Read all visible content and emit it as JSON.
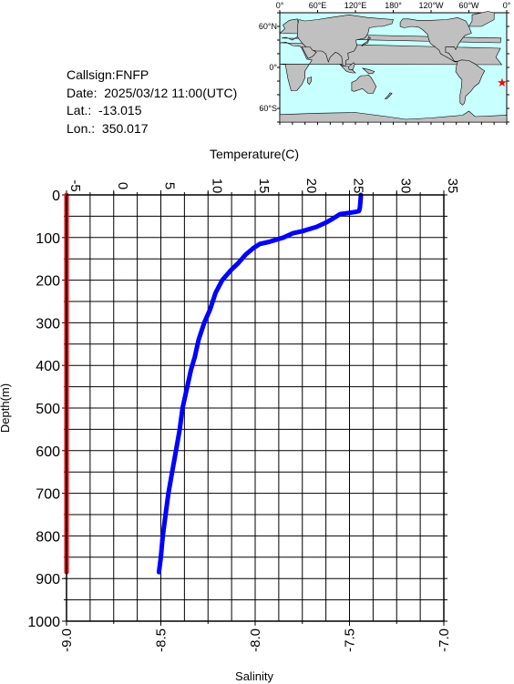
{
  "station": {
    "callsign": "Callsign:FNFP",
    "date": "Date:  2025/03/12 11:00(UTC)",
    "lat": "Lat.:  -13.015",
    "lon": "Lon.:  350.017"
  },
  "map": {
    "top_ticks": [
      "0°",
      "60°E",
      "120°E",
      "180°",
      "120°W",
      "60°W",
      "0°"
    ],
    "lat_ticks": [
      "60°N",
      "0°",
      "60°S"
    ],
    "colors": {
      "ocean": "#c8ffff",
      "land": "#c0c0c0",
      "marker": "#ff0000"
    },
    "marker_icon": "star-icon"
  },
  "chart_data": {
    "type": "line",
    "temperature_axis": {
      "label": "Temperature(C)",
      "range": [
        -5,
        35
      ],
      "ticks": [
        "-5",
        "0",
        "5",
        "10",
        "15",
        "20",
        "25",
        "30",
        "35"
      ]
    },
    "salinity_axis": {
      "label": "Salinity",
      "range": [
        -9.0,
        -7.0
      ],
      "ticks": [
        "-9.0",
        "-8.5",
        "-8.0",
        "-7.5",
        "-7.0"
      ]
    },
    "depth_axis": {
      "label": "Depth(m)",
      "range": [
        0,
        1000
      ],
      "ticks": [
        "0",
        "100",
        "200",
        "300",
        "400",
        "500",
        "600",
        "700",
        "800",
        "900",
        "1000"
      ]
    },
    "grid": true,
    "series": [
      {
        "quantity": "temperature",
        "color": "#0000ff",
        "points": [
          [
            26.2,
            0
          ],
          [
            26.2,
            5
          ],
          [
            26.1,
            30
          ],
          [
            26.0,
            38
          ],
          [
            25.6,
            40
          ],
          [
            25.0,
            42
          ],
          [
            24.0,
            45
          ],
          [
            23.3,
            55
          ],
          [
            22.5,
            65
          ],
          [
            21.5,
            75
          ],
          [
            20.0,
            85
          ],
          [
            19.0,
            90
          ],
          [
            18.0,
            100
          ],
          [
            16.5,
            110
          ],
          [
            15.5,
            115
          ],
          [
            14.8,
            125
          ],
          [
            14.0,
            140
          ],
          [
            13.2,
            160
          ],
          [
            12.5,
            175
          ],
          [
            11.5,
            200
          ],
          [
            10.8,
            230
          ],
          [
            10.2,
            270
          ],
          [
            9.6,
            300
          ],
          [
            9.0,
            340
          ],
          [
            8.6,
            380
          ],
          [
            8.2,
            410
          ],
          [
            7.8,
            450
          ],
          [
            7.3,
            500
          ],
          [
            7.0,
            550
          ],
          [
            6.6,
            600
          ],
          [
            6.2,
            650
          ],
          [
            5.8,
            700
          ],
          [
            5.5,
            750
          ],
          [
            5.2,
            800
          ],
          [
            5.0,
            850
          ],
          [
            4.8,
            885
          ]
        ]
      },
      {
        "quantity": "salinity",
        "color": "#ff0000",
        "points": [
          [
            -9.0,
            0
          ],
          [
            -9.0,
            885
          ]
        ]
      }
    ]
  }
}
